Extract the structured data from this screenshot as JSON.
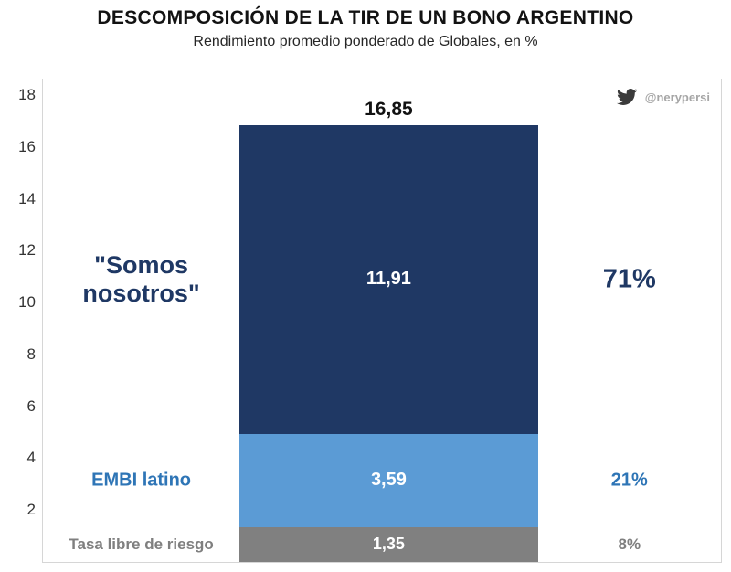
{
  "header": {
    "title": "DESCOMPOSICIÓN DE LA TIR DE UN BONO ARGENTINO",
    "subtitle": "Rendimiento promedio ponderado de Globales, en %"
  },
  "watermark": {
    "icon": "twitter-icon",
    "handle": "@nerypersi"
  },
  "chart_data": {
    "type": "bar",
    "stacked": true,
    "title": "DESCOMPOSICIÓN DE LA TIR DE UN BONO ARGENTINO",
    "subtitle": "Rendimiento promedio ponderado de Globales, en %",
    "xlabel": "",
    "ylabel": "",
    "ylim": [
      0,
      18.6
    ],
    "yticks": [
      2,
      4,
      6,
      8,
      10,
      12,
      14,
      16,
      18
    ],
    "grid": false,
    "legend_position": "none",
    "total_value": 16.85,
    "total_label": "16,85",
    "segments": [
      {
        "name": "Tasa libre de riesgo",
        "value": 1.35,
        "value_label": "1,35",
        "percent_label": "8%",
        "color": "#808080",
        "label_color": "#7f7f7f"
      },
      {
        "name": "EMBI latino",
        "value": 3.59,
        "value_label": "3,59",
        "percent_label": "21%",
        "color": "#5b9bd5",
        "label_color": "#2e75b6"
      },
      {
        "name": "\"Somos nosotros\"",
        "value": 11.91,
        "value_label": "11,91",
        "percent_label": "71%",
        "color": "#1f3864",
        "label_color": "#1f3864"
      }
    ]
  }
}
